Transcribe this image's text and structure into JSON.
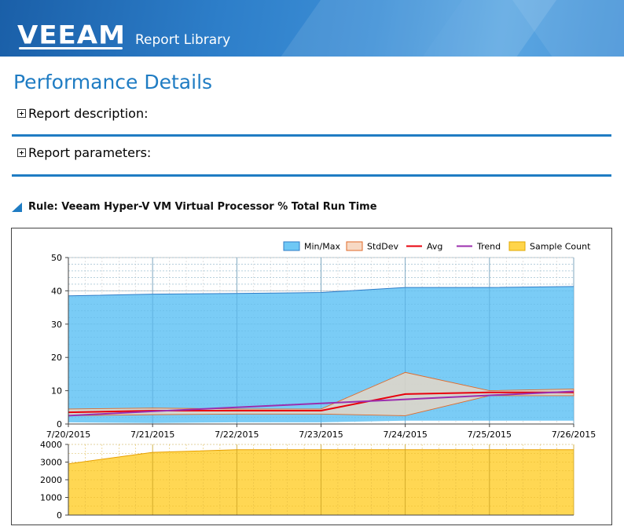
{
  "header": {
    "logo_text": "VEEAM",
    "app_name": "Report Library"
  },
  "page": {
    "title": "Performance Details"
  },
  "sections": [
    {
      "label": "Report description:"
    },
    {
      "label": "Report parameters:"
    }
  ],
  "rule": {
    "label": "Rule: Veeam Hyper-V VM Virtual Processor % Total Run Time"
  },
  "colors": {
    "header_blue": "#2d7ec9",
    "title_blue": "#1f7cc3",
    "minmax": "#6fc8f5",
    "stddev": "#f7d9c4",
    "avg": "#e8000b",
    "trend": "#9b2fae",
    "sample_count": "#ffd54a"
  },
  "chart_data": [
    {
      "type": "area",
      "legend": [
        "Min/Max",
        "StdDev",
        "Avg",
        "Trend",
        "Sample Count"
      ],
      "legend_position": "top-right",
      "grid": true,
      "x": [
        "7/20/2015",
        "7/21/2015",
        "7/22/2015",
        "7/23/2015",
        "7/24/2015",
        "7/25/2015",
        "7/26/2015"
      ],
      "ylim": [
        0,
        50
      ],
      "yticks": [
        "0",
        "10",
        "20",
        "30",
        "40",
        "50"
      ],
      "series": [
        {
          "name": "Min/Max",
          "kind": "band",
          "upper": [
            38.5,
            39,
            39.2,
            39.5,
            41,
            41,
            41.3
          ],
          "lower": [
            0.5,
            0.3,
            0.5,
            0.5,
            1,
            1,
            1
          ]
        },
        {
          "name": "StdDev",
          "kind": "band",
          "upper": [
            4.5,
            4.8,
            4.5,
            4.5,
            15.5,
            10,
            10.5
          ],
          "lower": [
            2.5,
            2.8,
            3,
            3,
            2.5,
            8.5,
            8.5
          ]
        },
        {
          "name": "Avg",
          "kind": "line",
          "values": [
            3.5,
            4,
            4,
            4,
            9,
            9.5,
            9.5
          ]
        },
        {
          "name": "Trend",
          "kind": "line",
          "values": [
            2.5,
            3.8,
            5,
            6.2,
            7.4,
            8.6,
            9.8
          ]
        }
      ]
    },
    {
      "type": "area",
      "x": [
        "7/20/2015",
        "7/21/2015",
        "7/22/2015",
        "7/23/2015",
        "7/24/2015",
        "7/25/2015",
        "7/26/2015"
      ],
      "ylim": [
        0,
        4000
      ],
      "yticks": [
        "0",
        "1000",
        "2000",
        "3000",
        "4000"
      ],
      "series": [
        {
          "name": "Sample Count",
          "values": [
            2900,
            3550,
            3700,
            3700,
            3700,
            3700,
            3700
          ]
        }
      ]
    }
  ]
}
